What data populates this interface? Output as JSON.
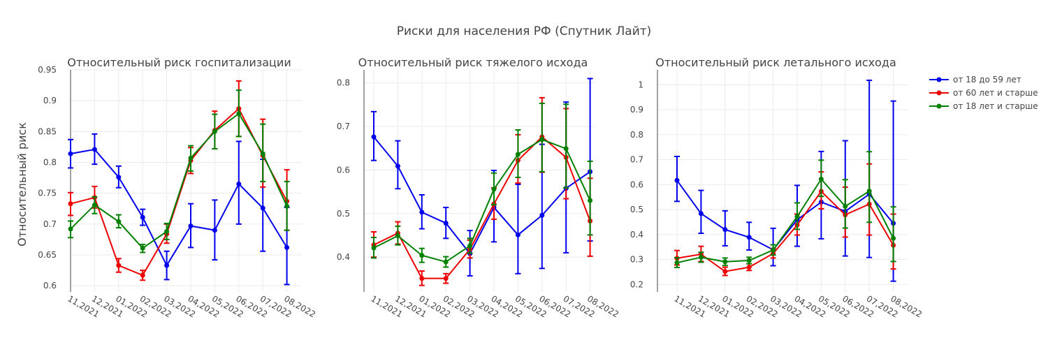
{
  "figure": {
    "title": "Риски для населения РФ (Спутник Лайт)",
    "ylabel": "Относительный риск"
  },
  "colors": {
    "series_18_59": "#0000ee",
    "series_60_plus": "#ee0000",
    "series_18_plus": "#008000",
    "grid": "#ebebeb",
    "axis": "#444444",
    "text": "#444444"
  },
  "legend": {
    "placement": "top-right",
    "items": [
      "от 18 до 59 лет",
      "от 60 лет и старше",
      "от 18 лет и старше"
    ]
  },
  "chart_data": [
    {
      "type": "line",
      "title": "Относительный риск госпитализации",
      "ylabel": "Относительный риск",
      "x": [
        "11,2021",
        "12,2021",
        "01,2022",
        "02,2022",
        "03,2022",
        "04,2022",
        "05,2022",
        "06,2022",
        "07,2022",
        "08,2022"
      ],
      "ylim": [
        0.59,
        0.95
      ],
      "yticks": [
        0.6,
        0.65,
        0.7,
        0.75,
        0.8,
        0.85,
        0.9,
        0.95
      ],
      "ytick_labels": [
        "0.6",
        "0.65",
        "0.7",
        "0.75",
        "0.8",
        "0.85",
        "0.9",
        "0.95"
      ],
      "grid": true,
      "series": [
        {
          "name": "от 18 до 59 лет",
          "values": [
            0.814,
            0.821,
            0.776,
            0.711,
            0.633,
            0.697,
            0.69,
            0.765,
            0.726,
            0.662
          ],
          "err_low": [
            0.791,
            0.797,
            0.759,
            0.698,
            0.61,
            0.662,
            0.642,
            0.7,
            0.656,
            0.602
          ],
          "err_high": [
            0.837,
            0.846,
            0.794,
            0.724,
            0.656,
            0.733,
            0.739,
            0.834,
            0.805,
            0.727
          ]
        },
        {
          "name": "от 60 лет и старше",
          "values": [
            0.733,
            0.743,
            0.633,
            0.617,
            0.684,
            0.803,
            0.852,
            0.887,
            0.811,
            0.737
          ],
          "err_low": [
            0.714,
            0.726,
            0.622,
            0.609,
            0.669,
            0.782,
            0.822,
            0.842,
            0.76,
            0.69
          ],
          "err_high": [
            0.751,
            0.761,
            0.644,
            0.625,
            0.7,
            0.824,
            0.883,
            0.932,
            0.87,
            0.788
          ]
        },
        {
          "name": "от 18 лет и старше",
          "values": [
            0.692,
            0.731,
            0.704,
            0.661,
            0.688,
            0.807,
            0.85,
            0.879,
            0.814,
            0.729
          ],
          "err_low": [
            0.678,
            0.717,
            0.694,
            0.654,
            0.675,
            0.786,
            0.822,
            0.842,
            0.769,
            0.69
          ],
          "err_high": [
            0.705,
            0.744,
            0.715,
            0.667,
            0.701,
            0.827,
            0.878,
            0.917,
            0.862,
            0.769
          ]
        }
      ]
    },
    {
      "type": "line",
      "title": "Относительный риск тяжелого исхода",
      "x": [
        "11,2021",
        "12,2021",
        "01,2022",
        "02,2022",
        "03,2022",
        "04,2022",
        "05,2022",
        "06,2022",
        "07,2022",
        "08,2022"
      ],
      "ylim": [
        0.32,
        0.83
      ],
      "yticks": [
        0.4,
        0.5,
        0.6,
        0.7,
        0.8
      ],
      "ytick_labels": [
        "0.4",
        "0.5",
        "0.6",
        "0.7",
        "0.8"
      ],
      "grid": true,
      "series": [
        {
          "name": "от 18 до 59 лет",
          "values": [
            0.676,
            0.609,
            0.503,
            0.478,
            0.408,
            0.514,
            0.451,
            0.496,
            0.558,
            0.596
          ],
          "err_low": [
            0.622,
            0.557,
            0.465,
            0.443,
            0.357,
            0.435,
            0.362,
            0.374,
            0.41,
            0.437
          ],
          "err_high": [
            0.734,
            0.667,
            0.543,
            0.514,
            0.461,
            0.599,
            0.567,
            0.659,
            0.756,
            0.81
          ]
        },
        {
          "name": "от 60 лет и старше",
          "values": [
            0.428,
            0.455,
            0.351,
            0.351,
            0.418,
            0.522,
            0.622,
            0.676,
            0.629,
            0.483
          ],
          "err_low": [
            0.4,
            0.43,
            0.335,
            0.34,
            0.398,
            0.487,
            0.57,
            0.595,
            0.534,
            0.402
          ],
          "err_high": [
            0.458,
            0.481,
            0.368,
            0.362,
            0.439,
            0.559,
            0.681,
            0.766,
            0.741,
            0.581
          ]
        },
        {
          "name": "от 18 лет и старше",
          "values": [
            0.421,
            0.449,
            0.404,
            0.389,
            0.426,
            0.556,
            0.636,
            0.67,
            0.649,
            0.53
          ],
          "err_low": [
            0.398,
            0.428,
            0.388,
            0.377,
            0.409,
            0.52,
            0.583,
            0.596,
            0.559,
            0.451
          ],
          "err_high": [
            0.445,
            0.471,
            0.42,
            0.401,
            0.443,
            0.593,
            0.692,
            0.753,
            0.751,
            0.62
          ]
        }
      ]
    },
    {
      "type": "line",
      "title": "Относительный риск летального исхода",
      "x": [
        "11,2021",
        "12,2021",
        "01,2022",
        "02,2022",
        "03,2022",
        "04,2022",
        "05,2022",
        "06,2022",
        "07,2022",
        "08,2022"
      ],
      "ylim": [
        0.17,
        1.06
      ],
      "yticks": [
        0.2,
        0.3,
        0.4,
        0.5,
        0.6,
        0.7,
        0.8,
        0.9,
        1
      ],
      "ytick_labels": [
        "0.2",
        "0.3",
        "0.4",
        "0.5",
        "0.6",
        "0.7",
        "0.8",
        "0.9",
        "1"
      ],
      "grid": true,
      "series": [
        {
          "name": "от 18 до 59 лет",
          "values": [
            0.617,
            0.484,
            0.42,
            0.389,
            0.339,
            0.459,
            0.53,
            0.493,
            0.562,
            0.445
          ],
          "err_low": [
            0.533,
            0.405,
            0.355,
            0.338,
            0.275,
            0.353,
            0.383,
            0.314,
            0.308,
            0.213
          ],
          "err_high": [
            0.713,
            0.577,
            0.495,
            0.449,
            0.425,
            0.597,
            0.733,
            0.776,
            1.018,
            0.935
          ]
        },
        {
          "name": "от 60 лет и старше",
          "values": [
            0.305,
            0.321,
            0.252,
            0.269,
            0.324,
            0.438,
            0.573,
            0.479,
            0.522,
            0.357
          ],
          "err_low": [
            0.278,
            0.292,
            0.236,
            0.256,
            0.306,
            0.398,
            0.503,
            0.39,
            0.398,
            0.262
          ],
          "err_high": [
            0.336,
            0.353,
            0.269,
            0.283,
            0.343,
            0.482,
            0.651,
            0.59,
            0.683,
            0.482
          ]
        },
        {
          "name": "от 18 лет и старше",
          "values": [
            0.287,
            0.309,
            0.291,
            0.296,
            0.338,
            0.472,
            0.622,
            0.513,
            0.574,
            0.385
          ],
          "err_low": [
            0.268,
            0.289,
            0.276,
            0.283,
            0.318,
            0.421,
            0.553,
            0.426,
            0.449,
            0.292
          ],
          "err_high": [
            0.307,
            0.329,
            0.306,
            0.309,
            0.359,
            0.527,
            0.698,
            0.62,
            0.732,
            0.511
          ]
        }
      ]
    }
  ]
}
